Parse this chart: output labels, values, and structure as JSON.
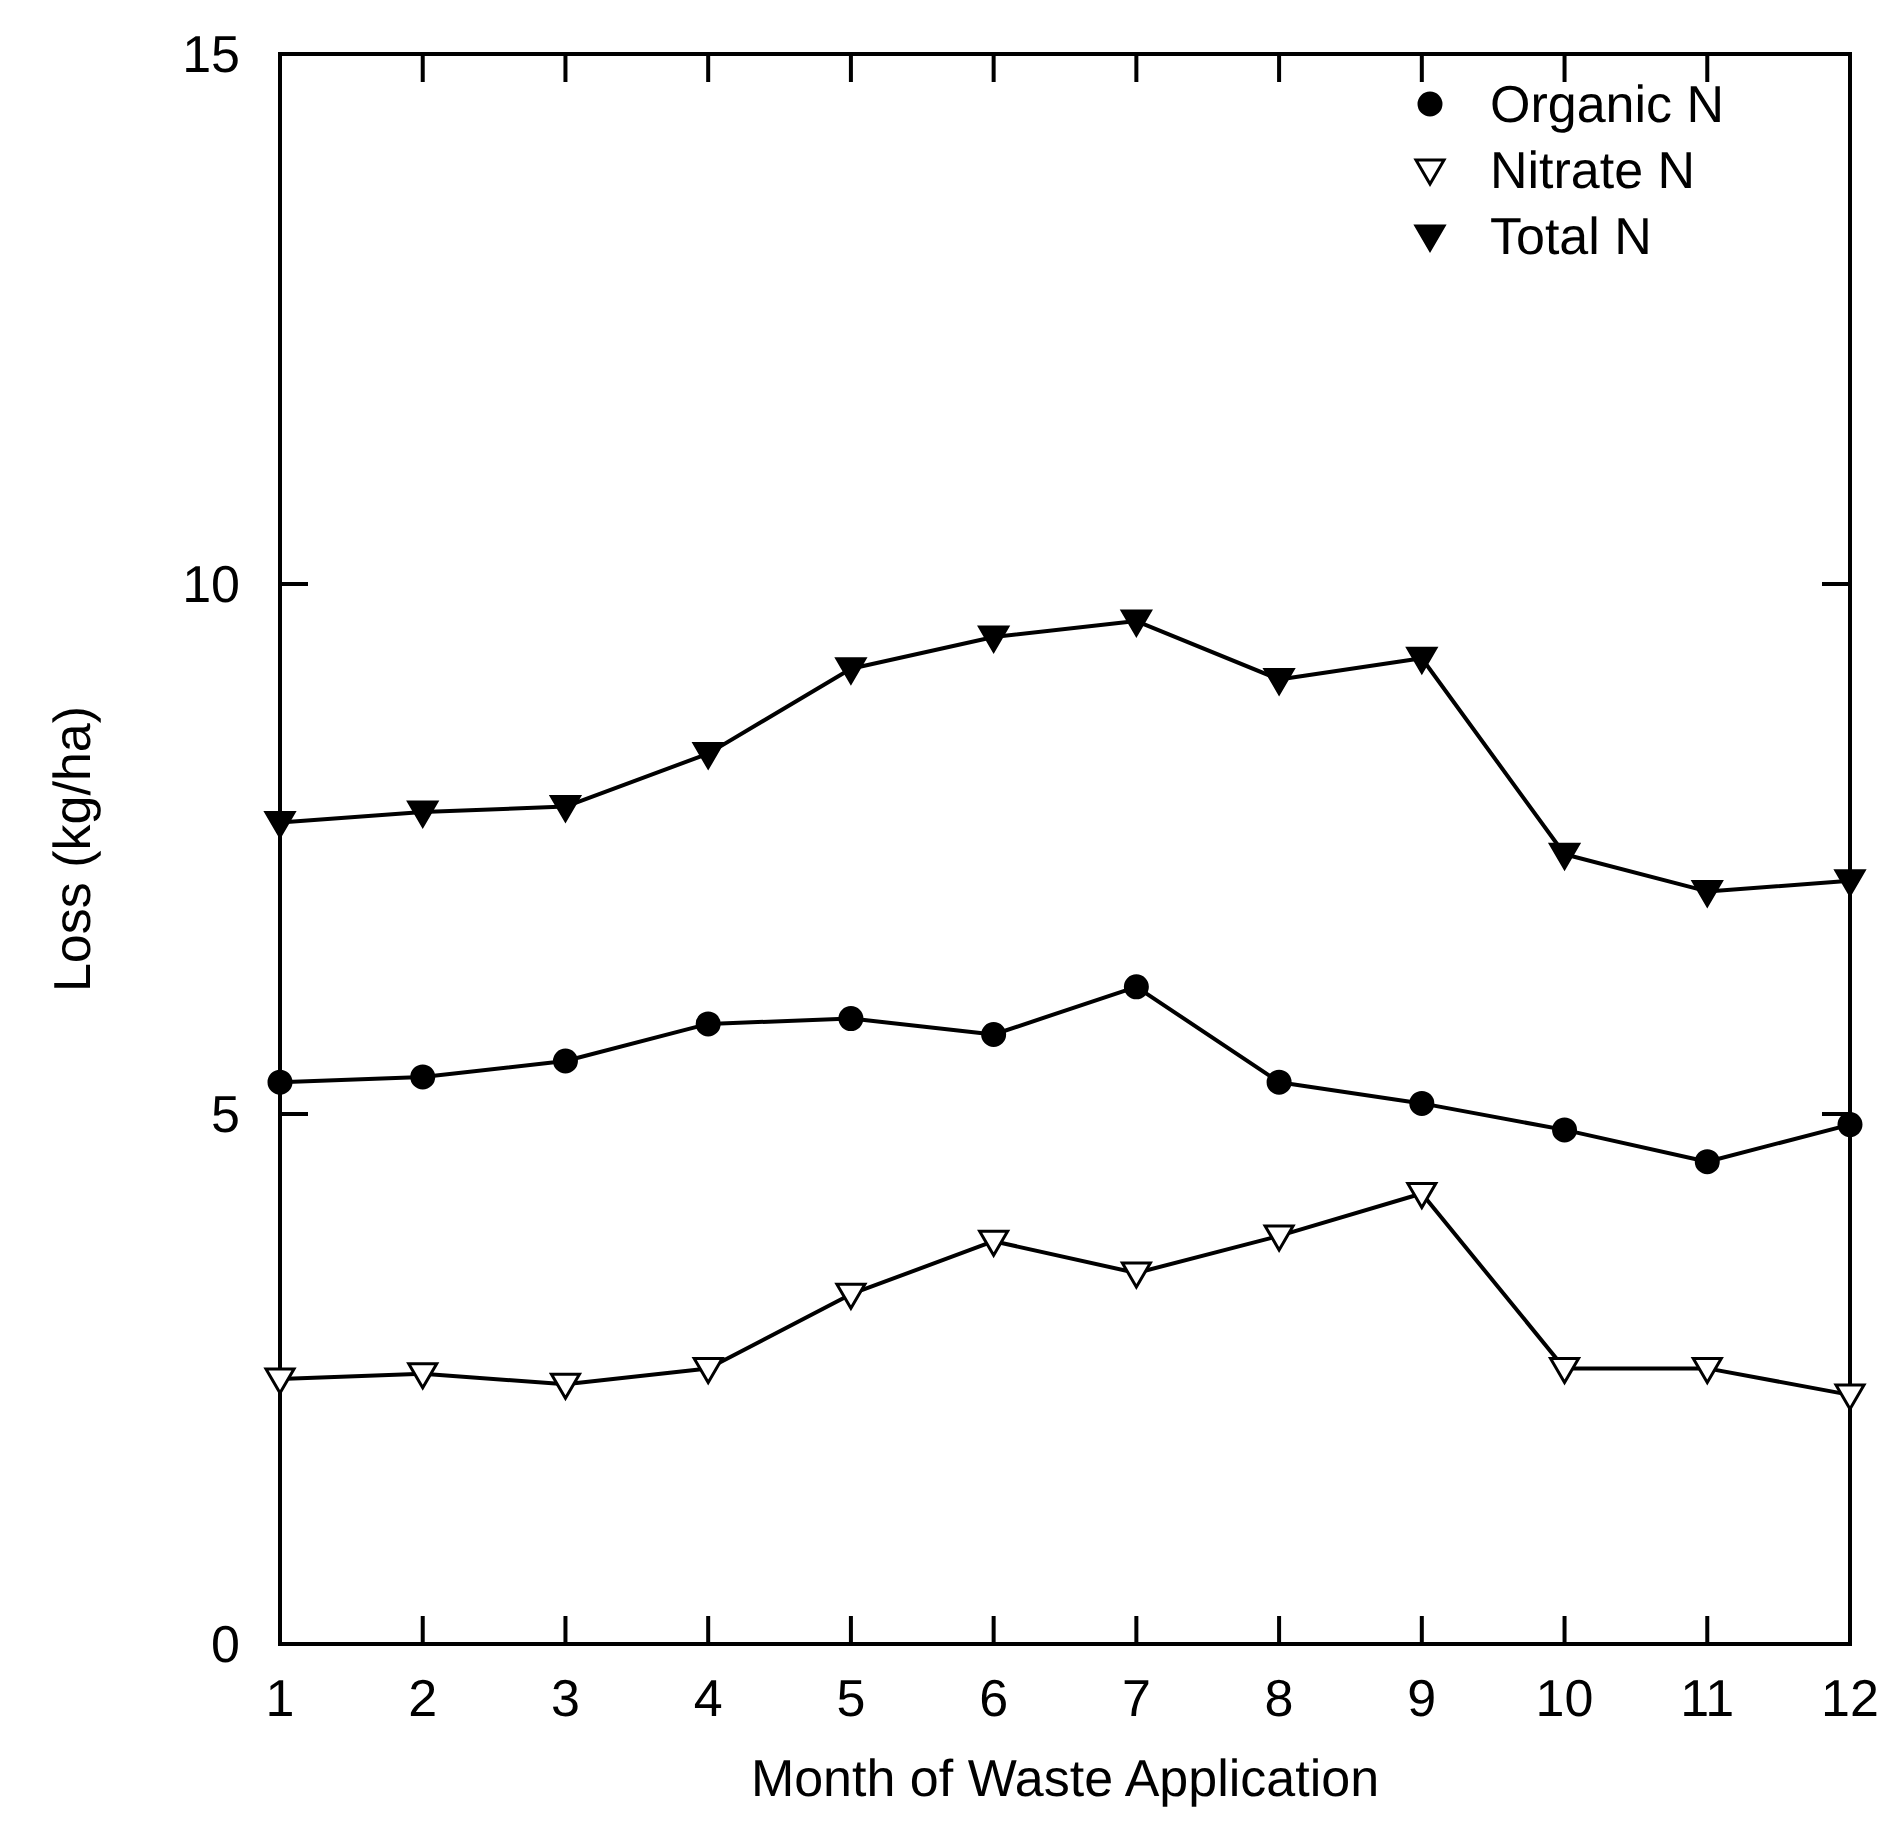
{
  "chart_data": {
    "type": "line",
    "xlabel": "Month of Waste Application",
    "ylabel": "Loss (kg/ha)",
    "x": [
      1,
      2,
      3,
      4,
      5,
      6,
      7,
      8,
      9,
      10,
      11,
      12
    ],
    "xlim": [
      1,
      12
    ],
    "xticks": [
      1,
      2,
      3,
      4,
      5,
      6,
      7,
      8,
      9,
      10,
      11,
      12
    ],
    "ylim": [
      0,
      15
    ],
    "yticks": [
      0,
      5,
      10,
      15
    ],
    "grid": false,
    "legend": "top right",
    "line_style": "solid",
    "series": [
      {
        "name": "Organic N",
        "color": "#000000",
        "marker": "circle",
        "values": [
          5.3,
          5.35,
          5.5,
          5.85,
          5.9,
          5.75,
          6.2,
          5.3,
          5.1,
          4.85,
          4.55,
          4.9
        ]
      },
      {
        "name": "Nitrate N",
        "color": "#000000",
        "marker": "triangle",
        "colors": [
          "#ffffff",
          "#ffffff",
          "#ffffff",
          "#ffffff",
          "#ffffff",
          "#ffffff",
          "#ffffff",
          "#ffffff",
          "#ffffff",
          "#ffffff",
          "#ffffff",
          "#ffffff"
        ],
        "values": [
          2.5,
          2.55,
          2.45,
          2.6,
          3.3,
          3.8,
          3.5,
          3.85,
          4.25,
          2.6,
          2.6,
          2.35
        ]
      },
      {
        "name": "Total N",
        "color": "#000000",
        "marker": "triangle",
        "values": [
          7.75,
          7.85,
          7.9,
          8.4,
          9.2,
          9.5,
          9.65,
          9.1,
          9.3,
          7.45,
          7.1,
          7.2
        ]
      }
    ]
  }
}
